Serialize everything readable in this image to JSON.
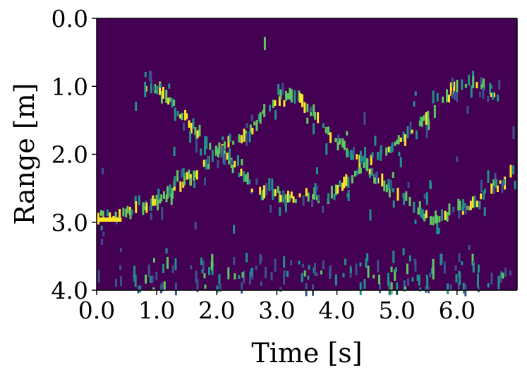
{
  "chart_data": {
    "type": "heatmap",
    "title": "",
    "xlabel": "Time [s]",
    "ylabel": "Range [m]",
    "xlim": [
      0.0,
      7.0
    ],
    "ylim": [
      4.0,
      0.0
    ],
    "y_inverted": true,
    "x_ticks": [
      0.0,
      1.0,
      2.0,
      3.0,
      4.0,
      5.0,
      6.0
    ],
    "x_tick_labels": [
      "0.0",
      "1.0",
      "2.0",
      "3.0",
      "4.0",
      "5.0",
      "6.0"
    ],
    "y_ticks": [
      0.0,
      1.0,
      2.0,
      3.0,
      4.0
    ],
    "y_tick_labels": [
      "0.0",
      "1.0",
      "2.0",
      "3.0",
      "4.0"
    ],
    "colormap": "viridis",
    "colors": {
      "background": "#440154",
      "low": "#3b528b",
      "mid": "#21918c",
      "high": "#5ec962",
      "peak": "#fde725"
    },
    "grid": false,
    "legend": "none",
    "tracks": [
      {
        "description_points": "main target: static then rising to near 1.2 m, descending, rising again",
        "points": [
          [
            0.0,
            2.9
          ],
          [
            0.4,
            2.9
          ],
          [
            0.5,
            2.8
          ],
          [
            0.8,
            2.8
          ],
          [
            1.0,
            2.7
          ],
          [
            1.3,
            2.5
          ],
          [
            1.6,
            2.3
          ],
          [
            1.9,
            2.1
          ],
          [
            2.1,
            1.9
          ],
          [
            2.4,
            1.75
          ],
          [
            2.6,
            1.6
          ],
          [
            2.8,
            1.4
          ],
          [
            3.0,
            1.25
          ],
          [
            3.2,
            1.15
          ],
          [
            3.4,
            1.2
          ],
          [
            3.6,
            1.4
          ],
          [
            3.8,
            1.65
          ],
          [
            4.0,
            1.8
          ],
          [
            4.2,
            1.95
          ],
          [
            4.4,
            2.1
          ],
          [
            4.6,
            2.3
          ],
          [
            4.8,
            2.45
          ],
          [
            5.0,
            2.55
          ],
          [
            5.2,
            2.7
          ],
          [
            5.4,
            2.85
          ],
          [
            5.6,
            2.95
          ],
          [
            5.8,
            2.9
          ],
          [
            6.0,
            2.8
          ],
          [
            6.2,
            2.75
          ],
          [
            6.4,
            2.65
          ],
          [
            6.6,
            2.5
          ],
          [
            6.8,
            2.4
          ],
          [
            7.0,
            2.2
          ]
        ]
      },
      {
        "description_points": "second target: near 1.0 m, descending to 2.6 m, rising, falling, rising to 0.9 m",
        "points": [
          [
            0.8,
            1.0
          ],
          [
            1.0,
            1.05
          ],
          [
            1.2,
            1.2
          ],
          [
            1.5,
            1.5
          ],
          [
            1.8,
            1.8
          ],
          [
            2.0,
            1.95
          ],
          [
            2.3,
            2.2
          ],
          [
            2.6,
            2.5
          ],
          [
            2.8,
            2.6
          ],
          [
            3.2,
            2.65
          ],
          [
            3.6,
            2.6
          ],
          [
            3.8,
            2.7
          ],
          [
            4.0,
            2.5
          ],
          [
            4.3,
            2.3
          ],
          [
            4.5,
            2.15
          ],
          [
            4.7,
            2.0
          ],
          [
            4.9,
            1.9
          ],
          [
            5.1,
            1.8
          ],
          [
            5.3,
            1.6
          ],
          [
            5.5,
            1.45
          ],
          [
            5.7,
            1.3
          ],
          [
            5.9,
            1.1
          ],
          [
            6.1,
            0.95
          ],
          [
            6.3,
            0.95
          ],
          [
            6.5,
            1.05
          ],
          [
            6.7,
            1.2
          ]
        ]
      }
    ],
    "clutter_band": [
      3.5,
      4.0
    ]
  }
}
